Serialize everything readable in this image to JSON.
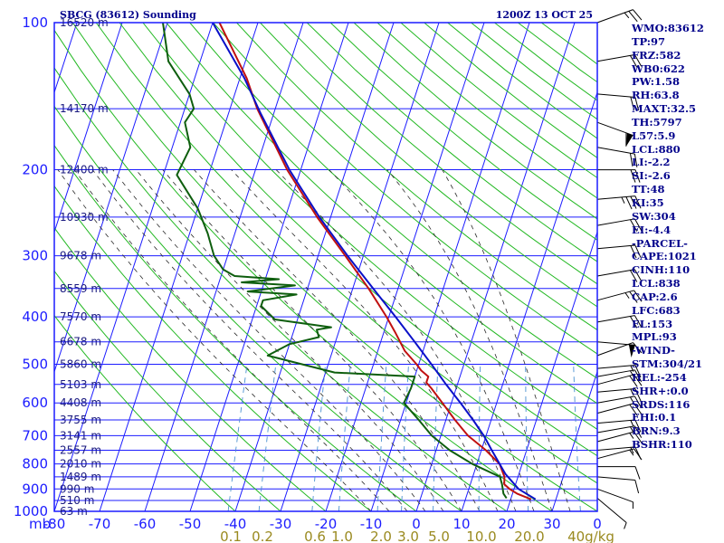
{
  "header": {
    "station": "SBCG (83612) Sounding",
    "time": "1200Z 13 OCT 25"
  },
  "indices": [
    "WMO:83612",
    "TP:97",
    "FRZ:582",
    "WB0:622",
    "PW:1.58",
    "RH:63.8",
    "MAXT:32.5",
    "TH:5797",
    "L57:5.9",
    "LCL:880",
    "LI:-2.2",
    "SI:-2.6",
    "TT:48",
    "KI:35",
    "SW:304",
    "EI:-4.4",
    "-PARCEL-",
    "CAPE:1021",
    "CINH:110",
    "LCL:838",
    "CAP:2.6",
    "LFC:683",
    "EL:153",
    "MPL:93",
    "-WIND-",
    "STM:304/21",
    "HEL:-254",
    "SHR+:0.0",
    "SRDS:116",
    "EHI:0.1",
    "BRN:9.3",
    "BSHR:110"
  ],
  "colors": {
    "frame": "#1c1cff",
    "isotherm_grid": "#1c1cff",
    "dry_adiabat": "#22b822",
    "moist_adiabat": "#2a2a2a",
    "mixing_ratio": "#4a90d0",
    "temperature": "#c01010",
    "dewpoint": "#0e5e0e",
    "parcel": "#0a10c8",
    "wind_barb": "#000000"
  },
  "chart_data": {
    "type": "line",
    "subtype": "skew-T log-p sounding",
    "x_axis": {
      "unit_label": "mb",
      "tick_labels": [
        "-80",
        "-70",
        "-60",
        "-50",
        "-40",
        "-30",
        "-20",
        "-10",
        "0",
        "10",
        "20",
        "30"
      ],
      "range_c": [
        -80,
        40
      ]
    },
    "y_axis": {
      "scale": "log",
      "range_mb": [
        1000,
        100
      ],
      "pressure_levels": [
        {
          "p": 100,
          "label": "100"
        },
        {
          "p": 200,
          "label": "200"
        },
        {
          "p": 300,
          "label": "300"
        },
        {
          "p": 400,
          "label": "400"
        },
        {
          "p": 500,
          "label": "500"
        },
        {
          "p": 600,
          "label": "600"
        },
        {
          "p": 700,
          "label": "700"
        },
        {
          "p": 800,
          "label": "800"
        },
        {
          "p": 900,
          "label": "900"
        },
        {
          "p": 1000,
          "label": "1000"
        }
      ],
      "height_labels": [
        {
          "p": 100,
          "label": "16520 m"
        },
        {
          "p": 150,
          "label": "14170 m"
        },
        {
          "p": 200,
          "label": "12400 m"
        },
        {
          "p": 250,
          "label": "10930 m"
        },
        {
          "p": 300,
          "label": "9678 m"
        },
        {
          "p": 350,
          "label": "8559 m"
        },
        {
          "p": 400,
          "label": "7570 m"
        },
        {
          "p": 450,
          "label": "6678 m"
        },
        {
          "p": 500,
          "label": "5860 m"
        },
        {
          "p": 550,
          "label": "5103 m"
        },
        {
          "p": 600,
          "label": "4408 m"
        },
        {
          "p": 650,
          "label": "3755 m"
        },
        {
          "p": 700,
          "label": "3141 m"
        },
        {
          "p": 750,
          "label": "2557 m"
        },
        {
          "p": 800,
          "label": "2010 m"
        },
        {
          "p": 850,
          "label": "1489 m"
        },
        {
          "p": 900,
          "label": "990 m"
        },
        {
          "p": 950,
          "label": "510 m"
        },
        {
          "p": 1000,
          "label": "63 m"
        }
      ]
    },
    "mixing_ratio_labels": [
      "0.1",
      "0.2",
      "0.6",
      "1.0",
      "2.0",
      "3.0",
      "5.0",
      "10.0",
      "20.0",
      "40g/kg"
    ],
    "series": [
      {
        "key": "temperature",
        "points": [
          [
            945,
            24.5
          ],
          [
            920,
            21
          ],
          [
            900,
            19
          ],
          [
            880,
            17.5
          ],
          [
            850,
            17
          ],
          [
            800,
            15
          ],
          [
            750,
            11
          ],
          [
            700,
            6
          ],
          [
            650,
            2
          ],
          [
            600,
            -2
          ],
          [
            560,
            -5.5
          ],
          [
            545,
            -7
          ],
          [
            530,
            -7
          ],
          [
            515,
            -9
          ],
          [
            500,
            -10.5
          ],
          [
            470,
            -14
          ],
          [
            430,
            -17.5
          ],
          [
            400,
            -20.5
          ],
          [
            350,
            -26.5
          ],
          [
            300,
            -34
          ],
          [
            250,
            -43
          ],
          [
            200,
            -53
          ],
          [
            150,
            -64
          ],
          [
            130,
            -68.5
          ],
          [
            100,
            -78.5
          ]
        ]
      },
      {
        "key": "dewpoint",
        "points": [
          [
            940,
            19
          ],
          [
            920,
            18
          ],
          [
            880,
            17
          ],
          [
            850,
            16
          ],
          [
            800,
            9
          ],
          [
            750,
            3
          ],
          [
            700,
            -2
          ],
          [
            650,
            -6
          ],
          [
            600,
            -10.5
          ],
          [
            560,
            -10
          ],
          [
            530,
            -10
          ],
          [
            520,
            -28
          ],
          [
            480,
            -44
          ],
          [
            455,
            -40
          ],
          [
            440,
            -34
          ],
          [
            425,
            -35
          ],
          [
            420,
            -32
          ],
          [
            405,
            -45
          ],
          [
            380,
            -49
          ],
          [
            370,
            -49
          ],
          [
            360,
            -42
          ],
          [
            355,
            -53
          ],
          [
            345,
            -43
          ],
          [
            340,
            -55
          ],
          [
            335,
            -47
          ],
          [
            330,
            -57
          ],
          [
            320,
            -60
          ],
          [
            300,
            -63
          ],
          [
            270,
            -66
          ],
          [
            240,
            -70
          ],
          [
            205,
            -77
          ],
          [
            180,
            -76
          ],
          [
            160,
            -79
          ],
          [
            150,
            -78
          ],
          [
            140,
            -80
          ],
          [
            120,
            -87
          ],
          [
            100,
            -91
          ]
        ]
      },
      {
        "key": "parcel",
        "points": [
          [
            945,
            25.5
          ],
          [
            900,
            21
          ],
          [
            838,
            17
          ],
          [
            750,
            12.3
          ],
          [
            700,
            9.5
          ],
          [
            650,
            6
          ],
          [
            600,
            2
          ],
          [
            550,
            -2.5
          ],
          [
            500,
            -7.2
          ],
          [
            450,
            -12.5
          ],
          [
            400,
            -18.5
          ],
          [
            350,
            -25.5
          ],
          [
            300,
            -33.5
          ],
          [
            250,
            -42.5
          ],
          [
            200,
            -52.5
          ],
          [
            153,
            -63
          ],
          [
            130,
            -69
          ],
          [
            110,
            -76
          ],
          [
            100,
            -80
          ]
        ]
      }
    ],
    "wind_barbs": [
      {
        "p": 100,
        "dir": 70,
        "spd": 25
      },
      {
        "p": 120,
        "dir": 80,
        "spd": 20
      },
      {
        "p": 140,
        "dir": 95,
        "spd": 20
      },
      {
        "p": 160,
        "dir": 110,
        "spd": 60
      },
      {
        "p": 180,
        "dir": 100,
        "spd": 20
      },
      {
        "p": 200,
        "dir": 90,
        "spd": 20
      },
      {
        "p": 230,
        "dir": 85,
        "spd": 35
      },
      {
        "p": 260,
        "dir": 80,
        "spd": 20
      },
      {
        "p": 290,
        "dir": 85,
        "spd": 20
      },
      {
        "p": 330,
        "dir": 80,
        "spd": 20
      },
      {
        "p": 370,
        "dir": 75,
        "spd": 25
      },
      {
        "p": 410,
        "dir": 80,
        "spd": 20
      },
      {
        "p": 450,
        "dir": 95,
        "spd": 50
      },
      {
        "p": 480,
        "dir": 70,
        "spd": 15
      },
      {
        "p": 510,
        "dir": 85,
        "spd": 15
      },
      {
        "p": 530,
        "dir": 80,
        "spd": 15
      },
      {
        "p": 550,
        "dir": 75,
        "spd": 20
      },
      {
        "p": 570,
        "dir": 85,
        "spd": 15
      },
      {
        "p": 600,
        "dir": 80,
        "spd": 15
      },
      {
        "p": 630,
        "dir": 75,
        "spd": 20
      },
      {
        "p": 660,
        "dir": 85,
        "spd": 15
      },
      {
        "p": 690,
        "dir": 80,
        "spd": 15
      },
      {
        "p": 720,
        "dir": 75,
        "spd": 15
      },
      {
        "p": 750,
        "dir": 85,
        "spd": 15
      },
      {
        "p": 780,
        "dir": 75,
        "spd": 15
      },
      {
        "p": 810,
        "dir": 90,
        "spd": 10
      },
      {
        "p": 850,
        "dir": 95,
        "spd": 10
      },
      {
        "p": 900,
        "dir": 110,
        "spd": 5
      },
      {
        "p": 940,
        "dir": 130,
        "spd": 5
      }
    ]
  }
}
